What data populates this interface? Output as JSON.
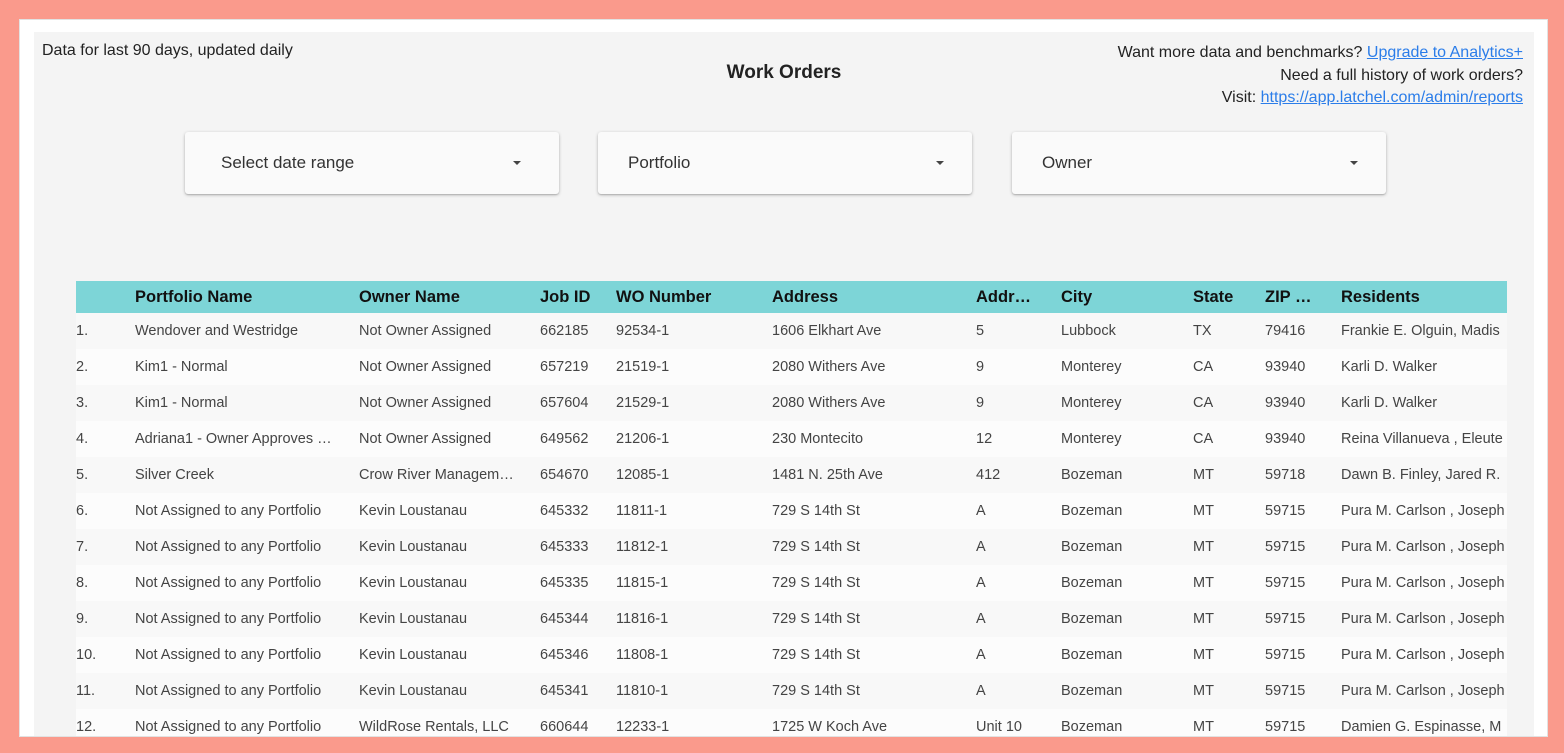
{
  "header": {
    "data_note": "Data for last 90 days, updated daily",
    "title": "Work Orders",
    "promo_line1_text": "Want more data and benchmarks?",
    "promo_line1_link": "Upgrade to Analytics+",
    "promo_line2_text": "Need a full history of work orders?",
    "promo_line3_text": "Visit:",
    "promo_line3_link": "https://app.latchel.com/admin/reports",
    "link_color": "#2b7de9"
  },
  "filters": {
    "date_range": "Select date range",
    "portfolio": "Portfolio",
    "owner": "Owner"
  },
  "table": {
    "header_color": "#7dd5d7",
    "columns": [
      "",
      "Portfolio Name",
      "Owner Name",
      "Job ID",
      "WO Number",
      "Address",
      "Addr…",
      "City",
      "State",
      "ZIP …",
      "Residents"
    ],
    "rows": [
      [
        "1.",
        "Wendover and Westridge",
        "Not Owner Assigned",
        "662185",
        "92534-1",
        "1606 Elkhart Ave",
        "5",
        "Lubbock",
        "TX",
        "79416",
        "Frankie E. Olguin, Madis"
      ],
      [
        "2.",
        "Kim1 - Normal",
        "Not Owner Assigned",
        "657219",
        "21519-1",
        "2080 Withers Ave",
        "9",
        "Monterey",
        "CA",
        "93940",
        "Karli D. Walker"
      ],
      [
        "3.",
        "Kim1 - Normal",
        "Not Owner Assigned",
        "657604",
        "21529-1",
        "2080 Withers Ave",
        "9",
        "Monterey",
        "CA",
        "93940",
        "Karli D. Walker"
      ],
      [
        "4.",
        "Adriana1 - Owner Approves …",
        "Not Owner Assigned",
        "649562",
        "21206-1",
        "230 Montecito",
        "12",
        "Monterey",
        "CA",
        "93940",
        "Reina Villanueva , Eleute"
      ],
      [
        "5.",
        "Silver Creek",
        "Crow River Managem…",
        "654670",
        "12085-1",
        "1481 N. 25th Ave",
        "412",
        "Bozeman",
        "MT",
        "59718",
        "Dawn B. Finley, Jared R."
      ],
      [
        "6.",
        "Not Assigned to any Portfolio",
        "Kevin Loustanau",
        "645332",
        "11811-1",
        "729 S 14th St",
        "A",
        "Bozeman",
        "MT",
        "59715",
        "Pura M. Carlson , Joseph"
      ],
      [
        "7.",
        "Not Assigned to any Portfolio",
        "Kevin Loustanau",
        "645333",
        "11812-1",
        "729 S 14th St",
        "A",
        "Bozeman",
        "MT",
        "59715",
        "Pura M. Carlson , Joseph"
      ],
      [
        "8.",
        "Not Assigned to any Portfolio",
        "Kevin Loustanau",
        "645335",
        "11815-1",
        "729 S 14th St",
        "A",
        "Bozeman",
        "MT",
        "59715",
        "Pura M. Carlson , Joseph"
      ],
      [
        "9.",
        "Not Assigned to any Portfolio",
        "Kevin Loustanau",
        "645344",
        "11816-1",
        "729 S 14th St",
        "A",
        "Bozeman",
        "MT",
        "59715",
        "Pura M. Carlson , Joseph"
      ],
      [
        "10.",
        "Not Assigned to any Portfolio",
        "Kevin Loustanau",
        "645346",
        "11808-1",
        "729 S 14th St",
        "A",
        "Bozeman",
        "MT",
        "59715",
        "Pura M. Carlson , Joseph"
      ],
      [
        "11.",
        "Not Assigned to any Portfolio",
        "Kevin Loustanau",
        "645341",
        "11810-1",
        "729 S 14th St",
        "A",
        "Bozeman",
        "MT",
        "59715",
        "Pura M. Carlson , Joseph"
      ],
      [
        "12.",
        "Not Assigned to any Portfolio",
        "WildRose Rentals, LLC",
        "660644",
        "12233-1",
        "1725 W Koch Ave",
        "Unit 10",
        "Bozeman",
        "MT",
        "59715",
        "Damien G. Espinasse, M"
      ]
    ]
  }
}
